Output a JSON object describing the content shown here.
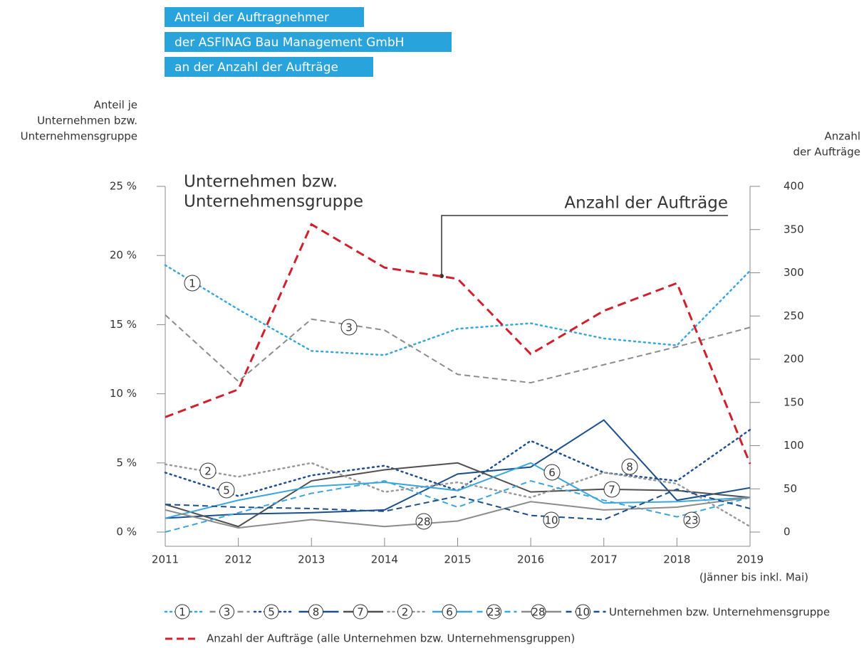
{
  "chart_data": {
    "type": "line",
    "title_lines": [
      "Anteil der Auftragnehmer",
      "der ASFINAG Bau Management GmbH",
      "an der Anzahl der Aufträge"
    ],
    "y_label_lines": [
      "Anteil je",
      "Unternehmen bzw.",
      "Unternehmensgruppe"
    ],
    "y2_label_lines": [
      "Anzahl",
      "der Aufträge"
    ],
    "annotation_left_lines": [
      "Unternehmen bzw.",
      "Unternehmensgruppe"
    ],
    "annotation_right": "Anzahl der Aufträge",
    "x_note": "(Jänner bis inkl. Mai)",
    "legend_group_label": "Unternehmen bzw. Unternehmensgruppe",
    "categories": [
      "2011",
      "2012",
      "2013",
      "2014",
      "2015",
      "2016",
      "2017",
      "2018",
      "2019"
    ],
    "ylim": [
      0,
      25
    ],
    "yticks": [
      {
        "value": 0,
        "label": "0 %"
      },
      {
        "value": 5,
        "label": "5 %"
      },
      {
        "value": 10,
        "label": "10 %"
      },
      {
        "value": 15,
        "label": "15 %"
      },
      {
        "value": 20,
        "label": "20 %"
      },
      {
        "value": 25,
        "label": "25 %"
      }
    ],
    "y2lim": [
      0,
      400
    ],
    "y2ticks": [
      0,
      50,
      100,
      150,
      200,
      250,
      300,
      350,
      400
    ],
    "series": [
      {
        "name": "1",
        "color": "#3aa6dc",
        "style": "dotted",
        "values": [
          19.3,
          16.1,
          13.1,
          12.8,
          14.7,
          15.1,
          14.0,
          13.5,
          18.9
        ]
      },
      {
        "name": "3",
        "color": "#8c8c8c",
        "style": "dashed",
        "values": [
          15.7,
          10.9,
          15.4,
          14.6,
          11.4,
          10.8,
          12.1,
          13.4,
          14.8
        ]
      },
      {
        "name": "5",
        "color": "#1f4e96",
        "style": "dotted",
        "values": [
          4.3,
          2.6,
          4.1,
          4.8,
          3.0,
          6.6,
          4.3,
          3.7,
          7.4
        ]
      },
      {
        "name": "8",
        "color": "#1a4f8c",
        "style": "solid",
        "values": [
          1.0,
          1.3,
          1.4,
          1.6,
          4.2,
          4.7,
          8.1,
          2.3,
          3.2
        ]
      },
      {
        "name": "7",
        "color": "#505050",
        "style": "solid",
        "values": [
          2.0,
          0.4,
          3.7,
          4.5,
          5.0,
          2.9,
          3.1,
          3.0,
          2.5
        ]
      },
      {
        "name": "2",
        "color": "#999999",
        "style": "dotted",
        "values": [
          4.9,
          4.0,
          5.0,
          2.9,
          3.6,
          2.5,
          4.3,
          3.5,
          0.4
        ]
      },
      {
        "name": "6",
        "color": "#3aa6dc",
        "style": "solid",
        "values": [
          1.0,
          2.3,
          3.3,
          3.6,
          3.0,
          5.0,
          2.1,
          2.2,
          2.5
        ]
      },
      {
        "name": "23",
        "color": "#3aa6dc",
        "style": "dashed",
        "values": [
          0.0,
          1.4,
          2.8,
          3.7,
          1.8,
          3.7,
          2.3,
          1.1,
          2.5
        ]
      },
      {
        "name": "28",
        "color": "#8c8c8c",
        "style": "solid",
        "values": [
          1.6,
          0.3,
          0.9,
          0.4,
          0.8,
          2.2,
          1.6,
          1.8,
          2.5
        ]
      },
      {
        "name": "10",
        "color": "#1a4f8c",
        "style": "dashed",
        "values": [
          2.0,
          1.8,
          1.7,
          1.5,
          2.6,
          1.2,
          0.9,
          3.1,
          1.7
        ]
      },
      {
        "name": "Anzahl der Aufträge (alle Unternehmen bzw. Unternehmensgruppen)",
        "color": "#d0202e",
        "style": "dashed",
        "axis": "y2",
        "values": [
          133,
          165,
          356,
          306,
          293,
          206,
          256,
          288,
          79
        ]
      }
    ]
  }
}
